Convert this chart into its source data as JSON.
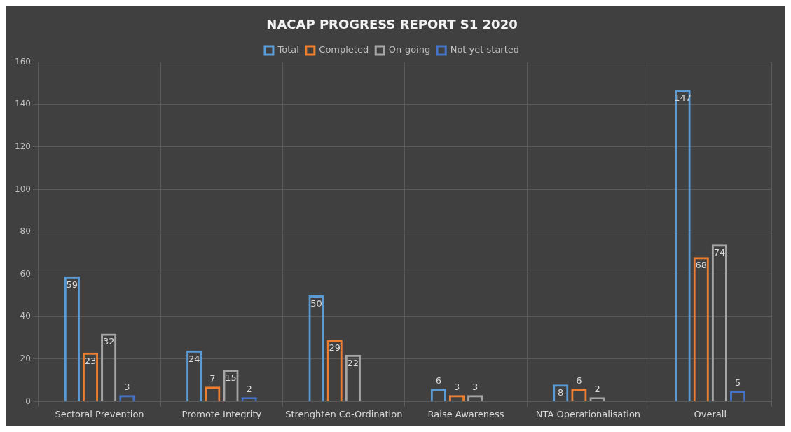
{
  "chart_data": {
    "type": "bar",
    "title": "NACAP PROGRESS REPORT S1 2020",
    "categories": [
      "Sectoral Prevention",
      "Promote Integrity",
      "Strenghten Co-Ordination",
      "Raise Awareness",
      "NTA Operationalisation",
      "Overall"
    ],
    "series": [
      {
        "name": "Total",
        "color": "#5b9bd5",
        "values": [
          59,
          24,
          50,
          6,
          8,
          147
        ]
      },
      {
        "name": "Completed",
        "color": "#ed7d31",
        "values": [
          23,
          7,
          29,
          3,
          6,
          68
        ]
      },
      {
        "name": "On-going",
        "color": "#a5a5a5",
        "values": [
          32,
          15,
          22,
          3,
          2,
          74
        ]
      },
      {
        "name": "Not yet started",
        "color": "#4472c4",
        "values": [
          3,
          2,
          null,
          null,
          null,
          5
        ]
      }
    ],
    "ylim": [
      0,
      160
    ],
    "yticks": [
      0,
      20,
      40,
      60,
      80,
      100,
      120,
      140,
      160
    ],
    "grid": true,
    "legend": "top",
    "data_labels": true
  }
}
